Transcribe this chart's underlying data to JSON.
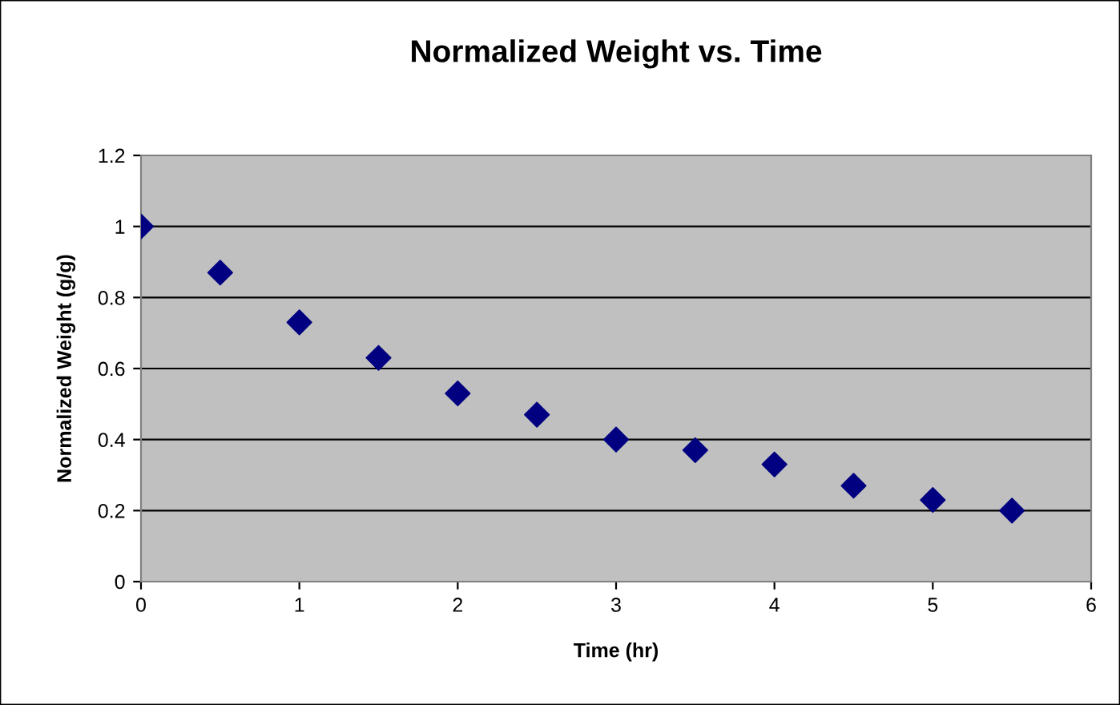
{
  "chart_data": {
    "type": "scatter",
    "title": "Normalized Weight vs. Time",
    "xlabel": "Time (hr)",
    "ylabel": "Normalized Weight (g/g)",
    "x": [
      0,
      0.5,
      1,
      1.5,
      2,
      2.5,
      3,
      3.5,
      4,
      4.5,
      5,
      5.5
    ],
    "series": [
      {
        "color": "#000080",
        "values": [
          1,
          0.87,
          0.73,
          0.63,
          0.53,
          0.47,
          0.4,
          0.37,
          0.33,
          0.27,
          0.23,
          0.2
        ]
      }
    ],
    "xlim": [
      0,
      6
    ],
    "xticks": [
      0,
      1,
      2,
      3,
      4,
      5,
      6
    ],
    "ylim": [
      0,
      1.2
    ],
    "yticks": [
      0,
      0.2,
      0.4,
      0.6,
      0.8,
      1,
      1.2
    ],
    "grid": "y",
    "marker": "diamond",
    "legend": false
  }
}
